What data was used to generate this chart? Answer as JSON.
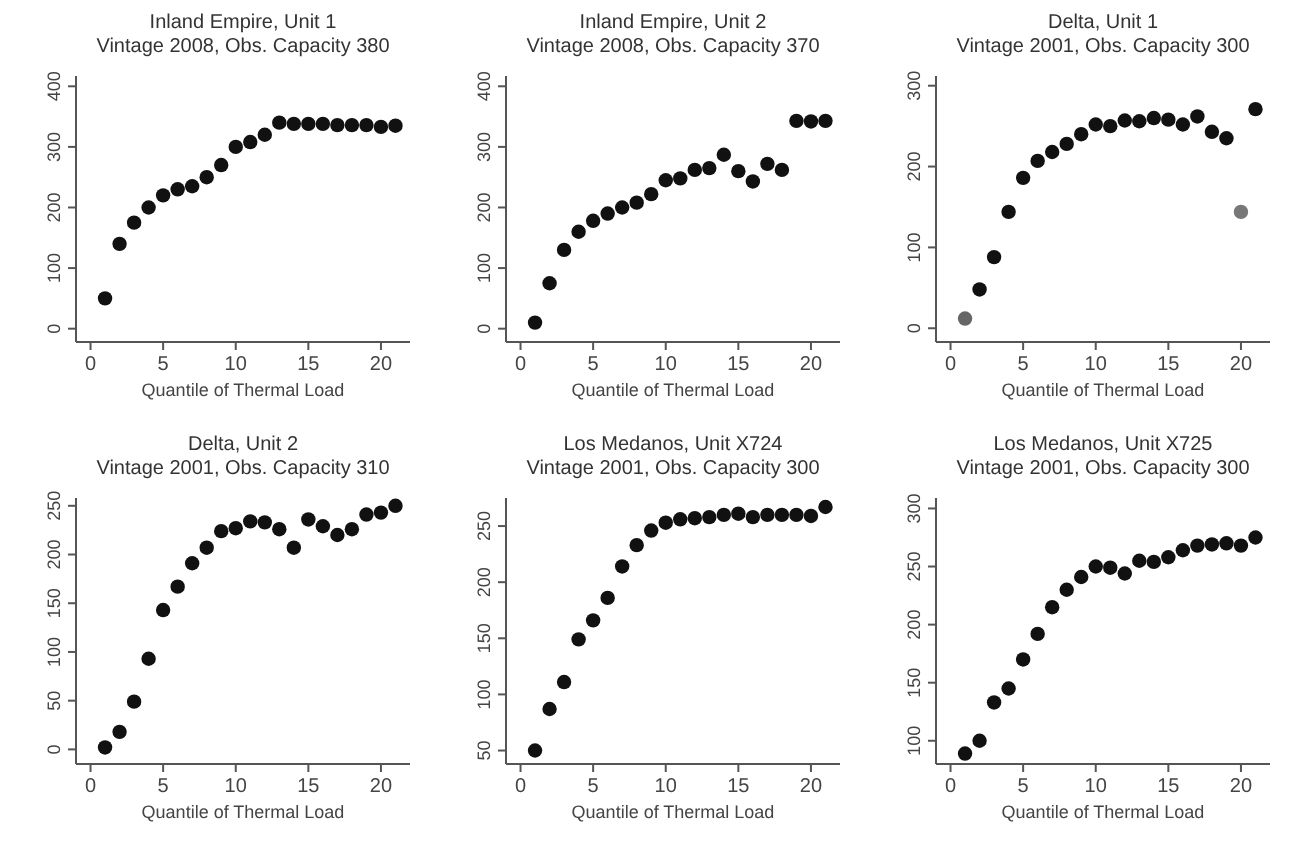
{
  "chart_data": [
    {
      "type": "scatter",
      "title": "Inland Empire, Unit 1",
      "subtitle": "Vintage 2008, Obs. Capacity 380",
      "xlabel": "Quantile of Thermal Load",
      "x": [
        1,
        2,
        3,
        4,
        5,
        6,
        7,
        8,
        9,
        10,
        11,
        12,
        13,
        14,
        15,
        16,
        17,
        18,
        19,
        20,
        21
      ],
      "values": [
        50,
        140,
        175,
        200,
        220,
        230,
        235,
        250,
        270,
        300,
        308,
        320,
        340,
        338,
        338,
        338,
        336,
        336,
        336,
        333,
        335
      ],
      "color": "#111111",
      "marker": "circle",
      "xlim": [
        -1,
        22
      ],
      "xticks": [
        0,
        5,
        10,
        15,
        20
      ],
      "ylim": [
        -22,
        417
      ],
      "yticks": [
        0,
        100,
        200,
        300,
        400
      ],
      "grid": false
    },
    {
      "type": "scatter",
      "title": "Inland Empire, Unit 2",
      "subtitle": "Vintage 2008, Obs. Capacity 370",
      "xlabel": "Quantile of Thermal Load",
      "x": [
        1,
        2,
        3,
        4,
        5,
        6,
        7,
        8,
        9,
        10,
        11,
        12,
        13,
        14,
        15,
        16,
        17,
        18,
        19,
        20,
        21
      ],
      "values": [
        10,
        75,
        130,
        160,
        178,
        190,
        200,
        208,
        222,
        245,
        248,
        262,
        265,
        287,
        260,
        243,
        272,
        262,
        343,
        342,
        343
      ],
      "color": "#111111",
      "marker": "circle",
      "xlim": [
        -1,
        22
      ],
      "xticks": [
        0,
        5,
        10,
        15,
        20
      ],
      "ylim": [
        -22,
        417
      ],
      "yticks": [
        0,
        100,
        200,
        300,
        400
      ],
      "grid": false
    },
    {
      "type": "scatter",
      "title": "Delta, Unit 1",
      "subtitle": "Vintage 2001, Obs. Capacity 300",
      "xlabel": "Quantile of Thermal Load",
      "x": [
        1,
        2,
        3,
        4,
        5,
        6,
        7,
        8,
        9,
        10,
        11,
        12,
        13,
        14,
        15,
        16,
        17,
        18,
        19,
        20,
        21
      ],
      "values": [
        12,
        48,
        88,
        144,
        186,
        207,
        218,
        228,
        240,
        252,
        250,
        257,
        256,
        260,
        258,
        252,
        262,
        243,
        235,
        144,
        271
      ],
      "colors": [
        "#666666",
        "#111111",
        "#111111",
        "#111111",
        "#111111",
        "#111111",
        "#111111",
        "#111111",
        "#111111",
        "#111111",
        "#111111",
        "#111111",
        "#111111",
        "#111111",
        "#111111",
        "#111111",
        "#111111",
        "#111111",
        "#111111",
        "#777777",
        "#111111"
      ],
      "marker": "circle",
      "xlim": [
        -1,
        22
      ],
      "xticks": [
        0,
        5,
        10,
        15,
        20
      ],
      "ylim": [
        -17,
        312
      ],
      "yticks": [
        0,
        100,
        200,
        300
      ],
      "grid": false
    },
    {
      "type": "scatter",
      "title": "Delta, Unit 2",
      "subtitle": "Vintage 2001, Obs. Capacity 310",
      "xlabel": "Quantile of Thermal Load",
      "x": [
        1,
        2,
        3,
        4,
        5,
        6,
        7,
        8,
        9,
        10,
        11,
        12,
        13,
        14,
        15,
        16,
        17,
        18,
        19,
        20,
        21
      ],
      "values": [
        2,
        18,
        49,
        93,
        143,
        167,
        191,
        207,
        224,
        227,
        234,
        233,
        226,
        207,
        236,
        229,
        220,
        226,
        241,
        243,
        250
      ],
      "color": "#111111",
      "marker": "circle",
      "xlim": [
        -1,
        22
      ],
      "xticks": [
        0,
        5,
        10,
        15,
        20
      ],
      "ylim": [
        -15,
        258
      ],
      "yticks": [
        0,
        50,
        100,
        150,
        200,
        250
      ],
      "grid": false
    },
    {
      "type": "scatter",
      "title": "Los Medanos, Unit X724",
      "subtitle": "Vintage 2001, Obs. Capacity 300",
      "xlabel": "Quantile of Thermal Load",
      "x": [
        1,
        2,
        3,
        4,
        5,
        6,
        7,
        8,
        9,
        10,
        11,
        12,
        13,
        14,
        15,
        16,
        17,
        18,
        19,
        20,
        21
      ],
      "values": [
        50,
        87,
        111,
        149,
        166,
        186,
        214,
        233,
        246,
        253,
        256,
        257,
        258,
        260,
        261,
        258,
        260,
        260,
        260,
        259,
        267
      ],
      "color": "#111111",
      "marker": "circle",
      "xlim": [
        -1,
        22
      ],
      "xticks": [
        0,
        5,
        10,
        15,
        20
      ],
      "ylim": [
        38,
        275
      ],
      "yticks": [
        50,
        100,
        150,
        200,
        250
      ],
      "grid": false
    },
    {
      "type": "scatter",
      "title": "Los Medanos, Unit X725",
      "subtitle": "Vintage 2001, Obs. Capacity 300",
      "xlabel": "Quantile of Thermal Load",
      "x": [
        1,
        2,
        3,
        4,
        5,
        6,
        7,
        8,
        9,
        10,
        11,
        12,
        13,
        14,
        15,
        16,
        17,
        18,
        19,
        20,
        21
      ],
      "values": [
        89,
        100,
        133,
        145,
        170,
        192,
        215,
        230,
        241,
        250,
        249,
        244,
        255,
        254,
        258,
        264,
        268,
        269,
        270,
        268,
        275
      ],
      "color": "#111111",
      "marker": "circle",
      "xlim": [
        -1,
        22
      ],
      "xticks": [
        0,
        5,
        10,
        15,
        20
      ],
      "ylim": [
        80,
        309
      ],
      "yticks": [
        100,
        150,
        200,
        250,
        300
      ],
      "grid": false
    }
  ]
}
